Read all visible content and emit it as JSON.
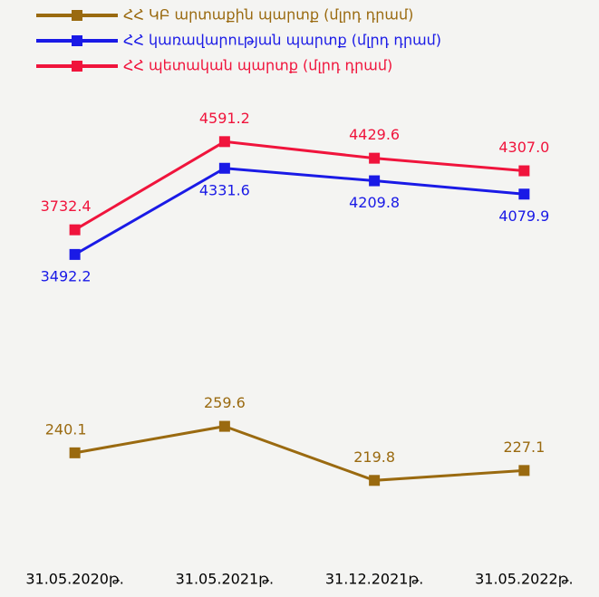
{
  "chart_data": {
    "type": "line",
    "categories": [
      "31.05.2020թ.",
      "31.05.2021թ.",
      "31.12.2021թ.",
      "31.05.2022թ."
    ],
    "series": [
      {
        "name": "ՀՀ ԿԲ արտաքին պարտք (մլրդ դրամ)",
        "color": "#9a6a10",
        "axis": "y2",
        "values": [
          240.1,
          259.6,
          219.8,
          227.1
        ]
      },
      {
        "name": "ՀՀ կառավարության պարտք (մլրդ դրամ)",
        "color": "#1a1ae6",
        "values": [
          3492.2,
          4331.6,
          4209.8,
          4079.9
        ]
      },
      {
        "name": "ՀՀ պետական պարտք (մլրդ դրամ)",
        "color": "#f0143c",
        "values": [
          3732.4,
          4591.2,
          4429.6,
          4307.0
        ],
        "value_labels": [
          "3732.4",
          "4591.2",
          "4429.6",
          "4307.0"
        ]
      }
    ],
    "ylim": [
      500,
      5000
    ],
    "y2lim": [
      160,
      500
    ],
    "legend": "top-left"
  }
}
